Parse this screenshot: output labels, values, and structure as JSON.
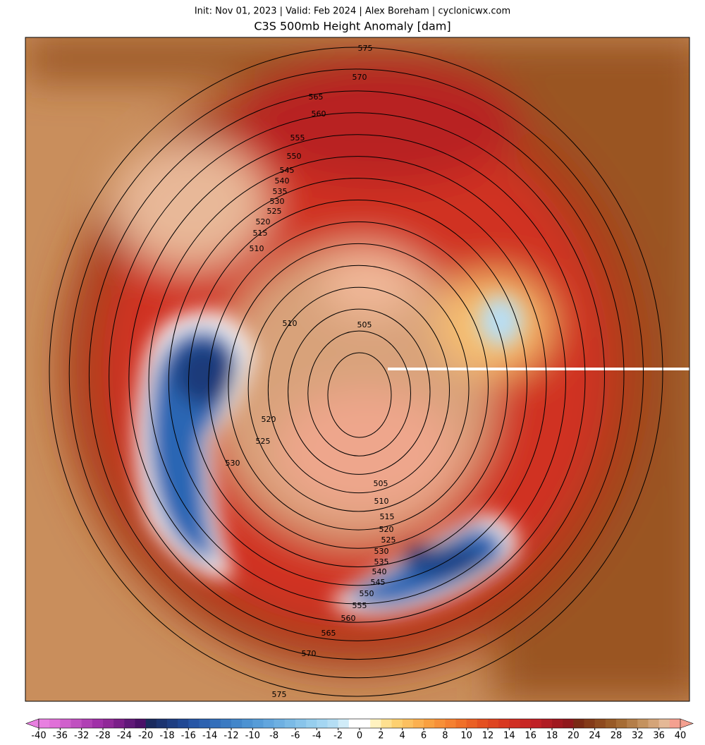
{
  "header": {
    "info": "Init: Nov 01, 2023 | Valid: Feb 2024 | Alex Boreham | cyclonicwx.com",
    "title": "C3S 500mb Height Anomaly [dam]"
  },
  "contour_levels": [
    505,
    510,
    515,
    520,
    525,
    530,
    535,
    540,
    545,
    550,
    555,
    560,
    565,
    570,
    575
  ],
  "contour_labels": [
    575,
    570,
    565,
    560,
    555,
    550,
    545,
    540,
    535,
    530,
    525,
    520,
    515,
    510,
    510,
    505,
    520,
    525,
    530,
    505,
    510,
    515,
    520,
    525,
    530,
    535,
    540,
    545,
    550,
    555,
    560,
    565,
    570,
    575
  ],
  "colorbar": {
    "ticks": [
      -40,
      -36,
      -32,
      -28,
      -24,
      -20,
      -18,
      -16,
      -14,
      -12,
      -10,
      -8,
      -6,
      -4,
      -2,
      0,
      2,
      4,
      6,
      8,
      10,
      12,
      14,
      16,
      18,
      20,
      24,
      28,
      32,
      36,
      40
    ],
    "colors": [
      "#e87fe0",
      "#e070d8",
      "#d060cc",
      "#c050c0",
      "#b040b4",
      "#a030a8",
      "#902898",
      "#7a1e88",
      "#601878",
      "#4a1068",
      "#1a2a5e",
      "#1c3470",
      "#1e3e82",
      "#204894",
      "#2656a6",
      "#2c62b0",
      "#326eba",
      "#3a7ac2",
      "#4286ca",
      "#4c92d2",
      "#569cd8",
      "#62a6de",
      "#6eb0e2",
      "#7abae6",
      "#88c4ea",
      "#96ceee",
      "#a4d6f2",
      "#b4def4",
      "#d0ecf8",
      "#ffffff",
      "#ffffff",
      "#fff2c0",
      "#fee090",
      "#fdd070",
      "#fcc060",
      "#fbb050",
      "#f9a040",
      "#f79038",
      "#f58030",
      "#f07028",
      "#ea6024",
      "#e45020",
      "#de4420",
      "#d83820",
      "#d02e22",
      "#c82624",
      "#c02026",
      "#b01c24",
      "#a01820",
      "#90181c",
      "#7a2a14",
      "#843a18",
      "#8e4a1e",
      "#985a26",
      "#a66c34",
      "#b47e48",
      "#c4925e",
      "#d4a478",
      "#e4b896",
      "#f4a090"
    ]
  }
}
